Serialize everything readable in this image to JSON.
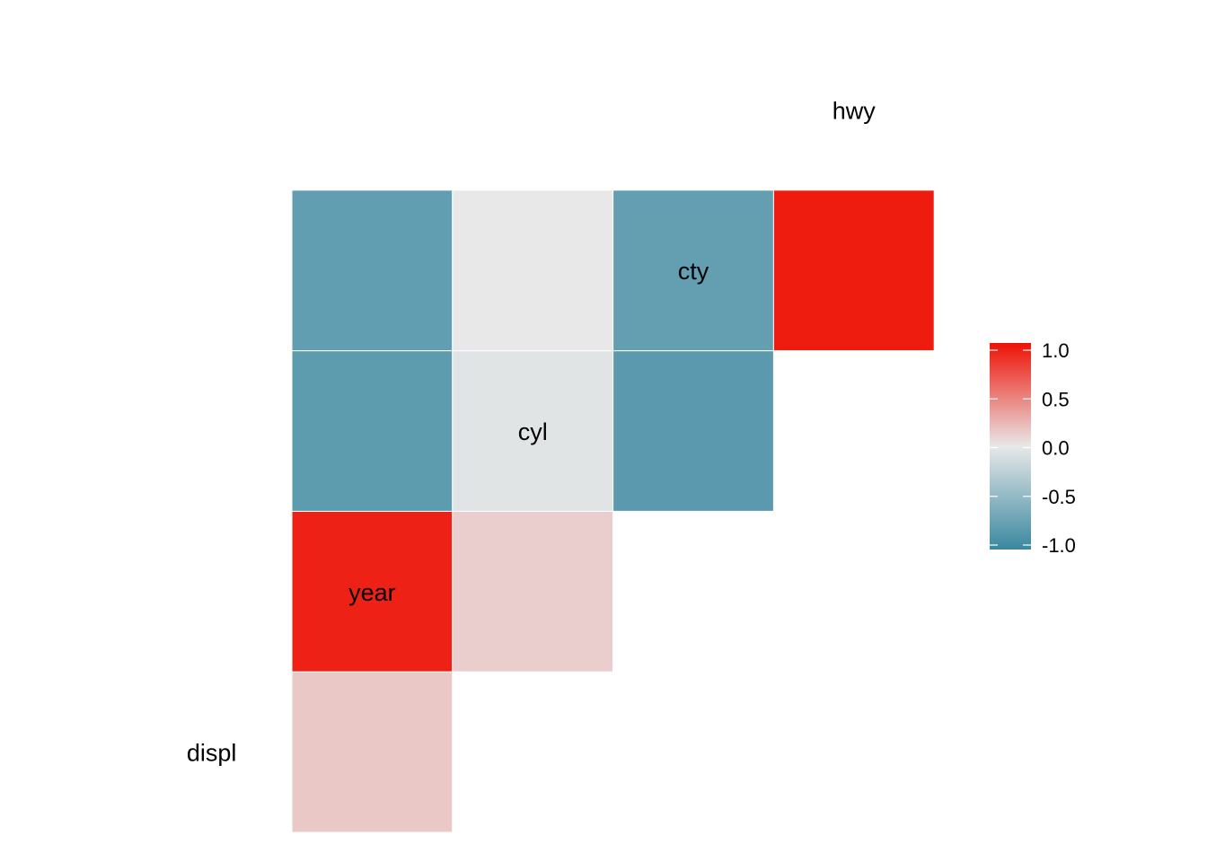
{
  "chart_data": {
    "type": "heatmap",
    "title": "",
    "xlabel": "",
    "ylabel": "",
    "variables": [
      "displ",
      "year",
      "cyl",
      "cty",
      "hwy"
    ],
    "triangle": "lower",
    "cells": [
      {
        "row": "year",
        "col": "displ",
        "value": 0.15
      },
      {
        "row": "cyl",
        "col": "displ",
        "value": 0.93
      },
      {
        "row": "cyl",
        "col": "year",
        "value": 0.12
      },
      {
        "row": "cty",
        "col": "displ",
        "value": -0.8
      },
      {
        "row": "cty",
        "col": "year",
        "value": -0.04
      },
      {
        "row": "cty",
        "col": "cyl",
        "value": -0.81
      },
      {
        "row": "hwy",
        "col": "displ",
        "value": -0.77
      },
      {
        "row": "hwy",
        "col": "year",
        "value": 0.0
      },
      {
        "row": "hwy",
        "col": "cyl",
        "value": -0.76
      },
      {
        "row": "hwy",
        "col": "cty",
        "value": 0.96
      }
    ],
    "legend": {
      "placement": "right",
      "limits": [
        -1,
        1
      ],
      "ticks": [
        "1.0",
        "0.5",
        "0.0",
        "-0.5",
        "-1.0"
      ],
      "tick_values": [
        1.0,
        0.5,
        0.0,
        -0.5,
        -1.0
      ]
    },
    "colors": {
      "low": "#3A88A0",
      "mid": "#E8E8E8",
      "high": "#EE1206",
      "cell_border": "#ffffff",
      "background": "#ffffff"
    }
  }
}
